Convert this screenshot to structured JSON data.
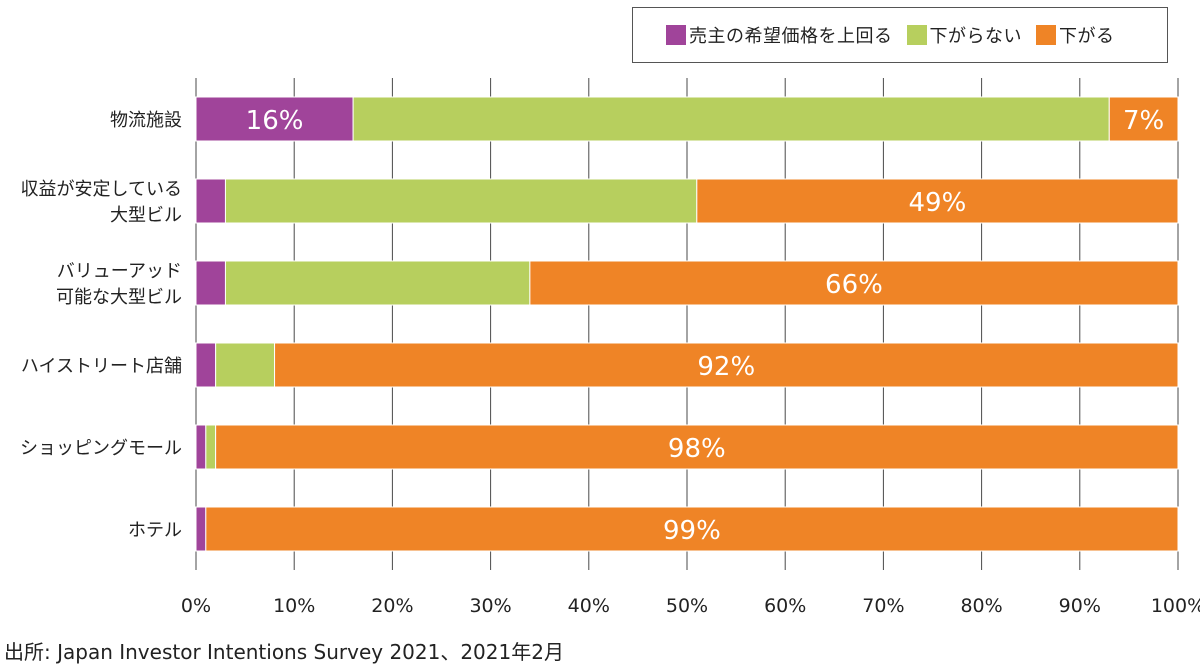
{
  "chart_data": {
    "type": "bar",
    "orientation": "horizontal",
    "stacked": true,
    "categories": [
      [
        "物流施設"
      ],
      [
        "収益が安定している",
        "大型ビル"
      ],
      [
        "バリューアッド",
        "可能な大型ビル"
      ],
      [
        "ハイストリート店舗"
      ],
      [
        "ショッピングモール"
      ],
      [
        "ホテル"
      ]
    ],
    "series": [
      {
        "name": "売主の希望価格を上回る",
        "color": "#a0449a",
        "values": [
          16,
          3,
          3,
          2,
          1,
          1
        ]
      },
      {
        "name": "下がらない",
        "color": "#b7cf5e",
        "values": [
          77,
          48,
          31,
          6,
          1,
          0
        ]
      },
      {
        "name": "下がる",
        "color": "#ef8426",
        "values": [
          7,
          49,
          66,
          92,
          98,
          99
        ]
      }
    ],
    "data_labels": [
      {
        "category_index": 0,
        "series_index": 0,
        "text": "16%"
      },
      {
        "category_index": 0,
        "series_index": 2,
        "text": "7%"
      },
      {
        "category_index": 1,
        "series_index": 2,
        "text": "49%"
      },
      {
        "category_index": 2,
        "series_index": 2,
        "text": "66%"
      },
      {
        "category_index": 3,
        "series_index": 2,
        "text": "92%"
      },
      {
        "category_index": 4,
        "series_index": 2,
        "text": "98%"
      },
      {
        "category_index": 5,
        "series_index": 2,
        "text": "99%"
      }
    ],
    "x_ticks": [
      "0%",
      "10%",
      "20%",
      "30%",
      "40%",
      "50%",
      "60%",
      "70%",
      "80%",
      "90%",
      "100%"
    ],
    "xlim": [
      0,
      100
    ],
    "grid": "vertical",
    "legend_position": "top-right",
    "title": "",
    "xlabel": "",
    "ylabel": ""
  },
  "source_text": "出所: Japan Investor Intentions Survey 2021、2021年2月"
}
